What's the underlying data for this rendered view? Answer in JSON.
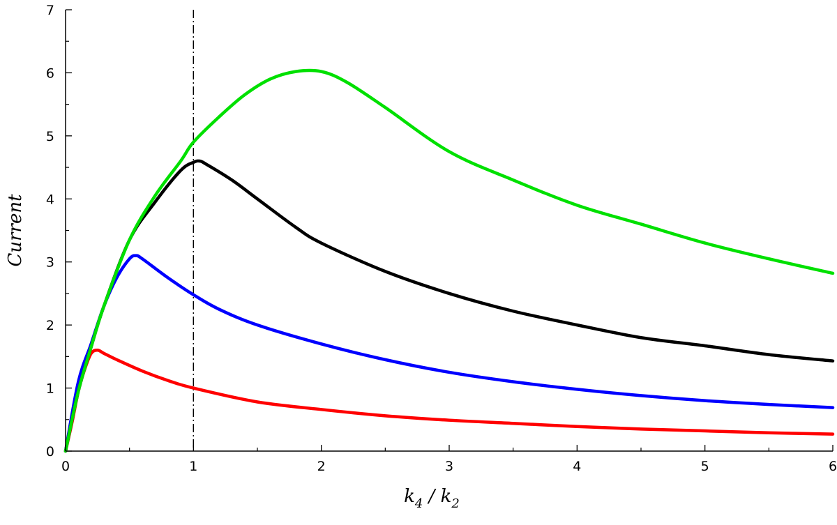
{
  "chart_data": {
    "type": "line",
    "title": "",
    "xlabel": {
      "main1": "k",
      "sub1": "4",
      "sep": " / ",
      "main2": "k",
      "sub2": "2"
    },
    "ylabel": "Current",
    "xlim": [
      0,
      6
    ],
    "ylim": [
      0,
      7
    ],
    "x_ticks": [
      "0",
      "1",
      "2",
      "3",
      "4",
      "5",
      "6"
    ],
    "y_ticks": [
      "0",
      "1",
      "2",
      "3",
      "4",
      "5",
      "6",
      "7"
    ],
    "x_minor_step": 0.5,
    "y_minor_step": 0.5,
    "grid": false,
    "legend": "none",
    "reference_line": {
      "x": 1,
      "style": "dash-dot",
      "color": "#000000"
    },
    "series": [
      {
        "color": "#00e000",
        "x": [
          0,
          0.1,
          0.2,
          0.3,
          0.5,
          0.7,
          0.9,
          1.0,
          1.2,
          1.4,
          1.6,
          1.8,
          2.0,
          2.2,
          2.5,
          3.0,
          3.5,
          4.0,
          4.5,
          5.0,
          5.5,
          6.0
        ],
        "y": [
          0,
          0.95,
          1.65,
          2.3,
          3.35,
          4.05,
          4.6,
          4.9,
          5.3,
          5.65,
          5.9,
          6.02,
          6.02,
          5.85,
          5.45,
          4.75,
          4.3,
          3.9,
          3.6,
          3.3,
          3.05,
          2.82
        ]
      },
      {
        "color": "#000000",
        "x": [
          0,
          0.1,
          0.2,
          0.3,
          0.5,
          0.7,
          0.9,
          1.0,
          1.05,
          1.1,
          1.3,
          1.5,
          1.8,
          2.0,
          2.5,
          3.0,
          3.5,
          4.0,
          4.5,
          5.0,
          5.5,
          6.0
        ],
        "y": [
          0,
          0.95,
          1.65,
          2.3,
          3.35,
          3.95,
          4.45,
          4.58,
          4.6,
          4.55,
          4.3,
          4.0,
          3.55,
          3.3,
          2.85,
          2.5,
          2.22,
          2.0,
          1.8,
          1.67,
          1.53,
          1.43
        ]
      },
      {
        "color": "#0000ff",
        "x": [
          0,
          0.1,
          0.2,
          0.3,
          0.4,
          0.5,
          0.55,
          0.6,
          0.8,
          1.0,
          1.2,
          1.5,
          2.0,
          2.5,
          3.0,
          3.5,
          4.0,
          4.5,
          5.0,
          5.5,
          6.0
        ],
        "y": [
          0,
          1.1,
          1.7,
          2.3,
          2.75,
          3.05,
          3.1,
          3.05,
          2.75,
          2.48,
          2.25,
          2.0,
          1.7,
          1.45,
          1.25,
          1.1,
          0.98,
          0.88,
          0.8,
          0.74,
          0.69
        ]
      },
      {
        "color": "#ff0000",
        "x": [
          0,
          0.05,
          0.1,
          0.15,
          0.2,
          0.25,
          0.3,
          0.4,
          0.6,
          0.8,
          1.0,
          1.5,
          2.0,
          2.5,
          3.0,
          3.5,
          4.0,
          4.5,
          5.0,
          5.5,
          6.0
        ],
        "y": [
          0,
          0.45,
          0.95,
          1.3,
          1.55,
          1.6,
          1.55,
          1.45,
          1.27,
          1.12,
          1.0,
          0.78,
          0.66,
          0.56,
          0.49,
          0.44,
          0.39,
          0.35,
          0.32,
          0.29,
          0.27
        ]
      }
    ]
  }
}
